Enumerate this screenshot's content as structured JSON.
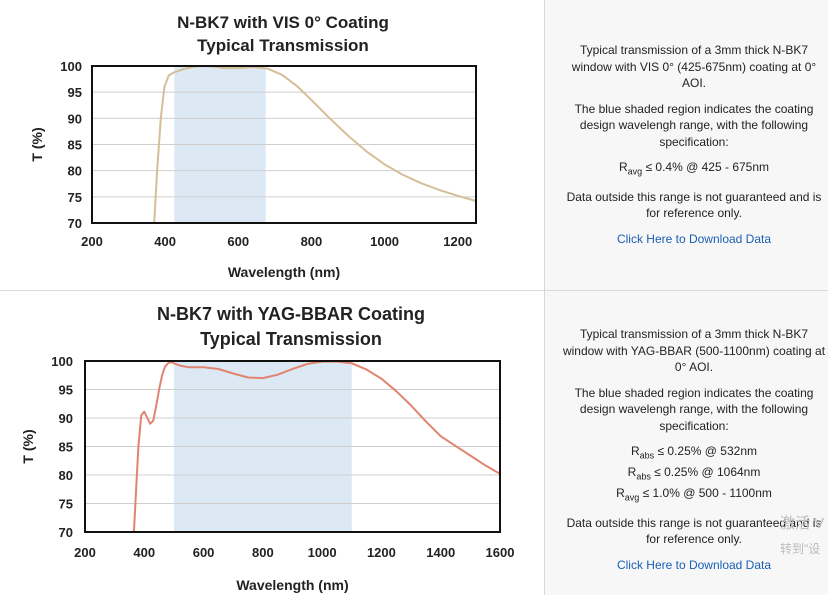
{
  "chart_data": [
    {
      "type": "line",
      "title": "N-BK7 with VIS 0° Coating",
      "subtitle": "Typical Transmission",
      "xlabel": "Wavelength (nm)",
      "ylabel": "T (%)",
      "xlim": [
        200,
        1250
      ],
      "ylim": [
        70,
        100
      ],
      "xticks": [
        200,
        400,
        600,
        800,
        1000,
        1200
      ],
      "yticks": [
        70,
        75,
        80,
        85,
        90,
        95,
        100
      ],
      "grid": true,
      "shaded_range": [
        425,
        675
      ],
      "shade_color": "#dce9f5",
      "line_color": "#d4bf98",
      "series": [
        {
          "x": [
            370,
            378,
            388,
            398,
            410,
            425,
            450,
            475,
            500,
            530,
            560,
            600,
            640,
            680,
            720,
            760,
            800,
            850,
            900,
            950,
            1000,
            1050,
            1100,
            1150,
            1200,
            1250
          ],
          "y": [
            70,
            80,
            90,
            96,
            98.2,
            98.8,
            99.4,
            99.8,
            100,
            99.9,
            99.6,
            99.6,
            99.8,
            99.5,
            98.3,
            96.2,
            93.5,
            90,
            86.7,
            83.7,
            81.2,
            79.2,
            77.6,
            76.3,
            75.2,
            74.2
          ]
        }
      ]
    },
    {
      "type": "line",
      "title": "N-BK7 with YAG-BBAR Coating",
      "subtitle": "Typical Transmission",
      "xlabel": "Wavelength (nm)",
      "ylabel": "T (%)",
      "xlim": [
        200,
        1600
      ],
      "ylim": [
        70,
        100
      ],
      "xticks": [
        200,
        400,
        600,
        800,
        1000,
        1200,
        1400,
        1600
      ],
      "yticks": [
        70,
        75,
        80,
        85,
        90,
        95,
        100
      ],
      "grid": true,
      "shaded_range": [
        500,
        1100
      ],
      "shade_color": "#dce9f5",
      "line_color": "#e08470",
      "series": [
        {
          "x": [
            365,
            372,
            380,
            390,
            400,
            410,
            420,
            430,
            440,
            450,
            460,
            470,
            480,
            490,
            500,
            520,
            550,
            600,
            650,
            700,
            750,
            800,
            850,
            900,
            950,
            1000,
            1050,
            1100,
            1150,
            1200,
            1250,
            1300,
            1350,
            1400,
            1450,
            1500,
            1550,
            1600
          ],
          "y": [
            70,
            77,
            85,
            90.5,
            91.1,
            90,
            89,
            89.5,
            92,
            95,
            97.5,
            99,
            99.6,
            99.8,
            99.6,
            99.2,
            98.9,
            98.9,
            98.6,
            97.8,
            97.1,
            97,
            97.6,
            98.6,
            99.5,
            99.9,
            99.9,
            99.6,
            98.5,
            96.9,
            94.7,
            92.2,
            89.4,
            86.8,
            85.1,
            83.4,
            81.7,
            80.2
          ]
        }
      ]
    }
  ],
  "descriptions": [
    {
      "intro": "Typical transmission of a 3mm thick N-BK7 window with VIS 0° (425-675nm) coating at 0° AOI.",
      "shaded": "The blue shaded region indicates the coating design wavelengh range, with the following specification:",
      "specs": [
        {
          "sym": "R",
          "sub": "avg",
          "rest": " ≤ 0.4% @ 425 - 675nm"
        }
      ],
      "disclaimer": "Data outside this range is not guaranteed and is for reference only.",
      "link": "Click Here to Download Data"
    },
    {
      "intro": "Typical transmission of a 3mm thick N-BK7 window with YAG-BBAR (500-1100nm) coating at 0° AOI.",
      "shaded": "The blue shaded region indicates the coating design wavelengh range, with the following specification:",
      "specs": [
        {
          "sym": "R",
          "sub": "abs",
          "rest": " ≤ 0.25% @ 532nm"
        },
        {
          "sym": "R",
          "sub": "abs",
          "rest": " ≤ 0.25% @ 1064nm"
        },
        {
          "sym": "R",
          "sub": "avg",
          "rest": " ≤ 1.0% @ 500 - 1100nm"
        }
      ],
      "disclaimer": "Data outside this range is not guaranteed and is for reference only.",
      "link": "Click Here to Download Data"
    }
  ],
  "watermark": {
    "line1": "激活 V",
    "line2": "转到\"设"
  }
}
